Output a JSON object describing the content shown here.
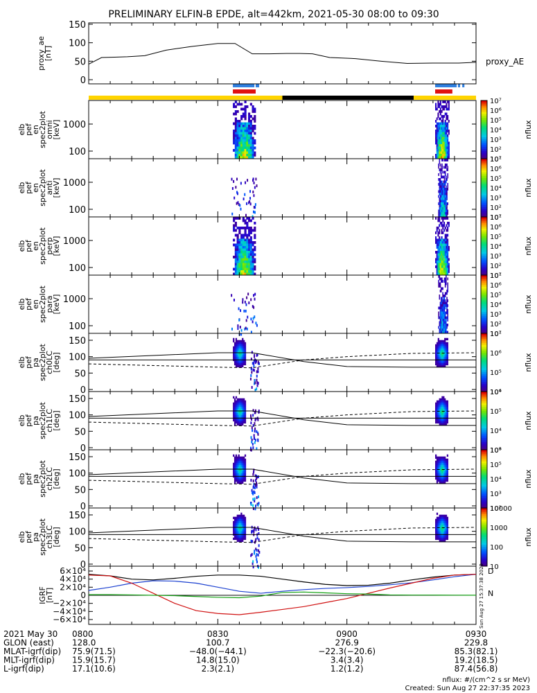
{
  "title": "PRELIMINARY ELFIN-B EPDE, alt=442km, 2021-05-30 08:00 to 09:30",
  "colors": {
    "science_zone": "#ffd400",
    "eclipse": "#000000",
    "fgm_bar": "#3080e0",
    "epd_bar": "#e01010",
    "line_bx": "#000000",
    "line_by": "#1a3fd0",
    "line_bz": "#d01010",
    "line_zero": "#10a010"
  },
  "chart_data": [
    {
      "type": "line",
      "name": "proxy_ae",
      "ylabel_lines": [
        "proxy_ae",
        "[nT]"
      ],
      "legend": "proxy_AE",
      "ylim": [
        0,
        150
      ],
      "yticks": [
        "150",
        "100",
        "50",
        "0"
      ],
      "ytick_values": [
        150,
        100,
        50,
        0
      ],
      "x_minutes": [
        0,
        3,
        6,
        9,
        13,
        18,
        24,
        30,
        34,
        38,
        42,
        46,
        49,
        52,
        56,
        62,
        68,
        74,
        80,
        86,
        90
      ],
      "values": [
        42,
        60,
        61,
        62,
        65,
        80,
        90,
        98,
        98,
        70,
        70,
        71,
        71,
        70,
        60,
        57,
        50,
        44,
        45,
        45,
        47
      ]
    },
    {
      "type": "heatmap",
      "ylabel_lines": [
        "elb",
        "pef",
        "en",
        "spec2plot",
        "omni",
        "[keV]"
      ],
      "yticks": [
        "1000",
        "100"
      ],
      "cbar_label": "nflux",
      "cbar_ticks": [
        "10⁷",
        "10⁶",
        "10⁵",
        "10⁴",
        "10³",
        "10²",
        "10¹"
      ]
    },
    {
      "type": "heatmap",
      "ylabel_lines": [
        "elb",
        "pef",
        "en",
        "spec2plot",
        "anti",
        "[keV]"
      ],
      "yticks": [
        "1000",
        "100"
      ],
      "cbar_label": "nflux",
      "cbar_ticks": [
        "10⁷",
        "10⁶",
        "10⁵",
        "10⁴",
        "10³",
        "10²",
        "10¹"
      ]
    },
    {
      "type": "heatmap",
      "ylabel_lines": [
        "elb",
        "pef",
        "en",
        "spec2plot",
        "perp",
        "[keV]"
      ],
      "yticks": [
        "1000",
        "100"
      ],
      "cbar_label": "nflux",
      "cbar_ticks": [
        "10⁷",
        "10⁶",
        "10⁵",
        "10⁴",
        "10³",
        "10²",
        "10¹"
      ]
    },
    {
      "type": "heatmap",
      "ylabel_lines": [
        "elb",
        "pef",
        "en",
        "spec2plot",
        "para",
        "[keV]"
      ],
      "yticks": [
        "1000",
        "100"
      ],
      "cbar_label": "nflux",
      "cbar_ticks": [
        "10⁷",
        "10⁶",
        "10⁵",
        "10⁴",
        "10³",
        "10²",
        "10¹"
      ]
    },
    {
      "type": "heatmap",
      "ylabel_lines": [
        "elb",
        "pef",
        "pa",
        "spec2plot",
        "ch0LC",
        "[deg]"
      ],
      "yticks": [
        "150",
        "100",
        "50",
        "0"
      ],
      "cbar_label": "nflux",
      "cbar_ticks": [
        "10⁷",
        "10⁶",
        "10⁵",
        "10⁴"
      ]
    },
    {
      "type": "heatmap",
      "ylabel_lines": [
        "elb",
        "pef",
        "pa",
        "spec2plot",
        "ch1LC",
        "[deg]"
      ],
      "yticks": [
        "150",
        "100",
        "50",
        "0"
      ],
      "cbar_label": "nflux",
      "cbar_ticks": [
        "10⁶",
        "10⁵",
        "10⁴",
        "10³"
      ]
    },
    {
      "type": "heatmap",
      "ylabel_lines": [
        "elb",
        "pef",
        "pa",
        "spec2plot",
        "ch2LC",
        "[deg]"
      ],
      "yticks": [
        "150",
        "100",
        "50",
        "0"
      ],
      "cbar_label": "nflux",
      "cbar_ticks": [
        "10⁶",
        "10⁵",
        "10⁴",
        "10³",
        "10²"
      ]
    },
    {
      "type": "heatmap",
      "ylabel_lines": [
        "elb",
        "pef",
        "pa",
        "spec2plot",
        "ch3LC",
        "[deg]"
      ],
      "yticks": [
        "150",
        "100",
        "50",
        "0"
      ],
      "cbar_label": "nflux",
      "cbar_ticks": [
        "10000",
        "1000",
        "100",
        "10"
      ]
    },
    {
      "type": "line",
      "name": "igrf",
      "ylabel_lines": [
        "IGRF",
        "[nT]"
      ],
      "yticks": [
        "6×10⁴",
        "4×10⁴",
        "2×10⁴",
        "0",
        "−2×10⁴",
        "−4×10⁴",
        "−6×10⁴"
      ],
      "side_legend": [
        "D",
        "N"
      ],
      "side_note": "Sun Aug 27 15:37:38 2023",
      "x_minutes": [
        0,
        5,
        10,
        15,
        20,
        25,
        30,
        35,
        40,
        45,
        50,
        55,
        60,
        65,
        70,
        75,
        80,
        85,
        90
      ],
      "series_values": [
        [
          52000,
          48000,
          40000,
          38000,
          42000,
          47000,
          50000,
          50000,
          47000,
          40000,
          33000,
          27000,
          24000,
          25000,
          30000,
          38000,
          45000,
          50000,
          52000
        ],
        [
          12000,
          20000,
          30000,
          36000,
          35000,
          30000,
          20000,
          10000,
          5000,
          10000,
          14000,
          17000,
          19000,
          22000,
          26000,
          31000,
          38000,
          46000,
          52000
        ],
        [
          50000,
          48000,
          30000,
          5000,
          -20000,
          -38000,
          -45000,
          -48000,
          -42000,
          -35000,
          -28000,
          -18000,
          -8000,
          5000,
          18000,
          30000,
          42000,
          50000,
          52000
        ],
        [
          1500,
          1500,
          1000,
          0,
          -1000,
          -3000,
          -5000,
          -6000,
          -2000,
          7000,
          8000,
          6000,
          4000,
          3000,
          1000,
          500,
          500,
          300,
          200
        ]
      ]
    }
  ],
  "time_axis": {
    "rows": [
      {
        "label": "2021 May 30",
        "values": [
          "0800",
          "0830",
          "0900",
          "0930"
        ]
      },
      {
        "label": "GLON (east)",
        "values": [
          "128.0",
          "100.7",
          "276.9",
          "229.8"
        ]
      },
      {
        "label": "MLAT-igrf(dip)",
        "values": [
          "75.9(71.5)",
          "−48.0(−44.1)",
          "−22.3(−20.6)",
          "85.3(82.1)"
        ]
      },
      {
        "label": "MLT-igrf(dip)",
        "values": [
          "15.9(15.7)",
          "14.8(15.0)",
          "3.4(3.4)",
          "19.2(18.5)"
        ]
      },
      {
        "label": "L-igrf(dip)",
        "values": [
          "17.1(10.6)",
          "2.3(2.1)",
          "1.2(1.2)",
          "87.4(56.8)"
        ]
      }
    ]
  },
  "footer": {
    "units": "nflux: #/(cm^2 s sr MeV)",
    "created": "Created: Sun Aug 27 22:37:35 2023"
  }
}
